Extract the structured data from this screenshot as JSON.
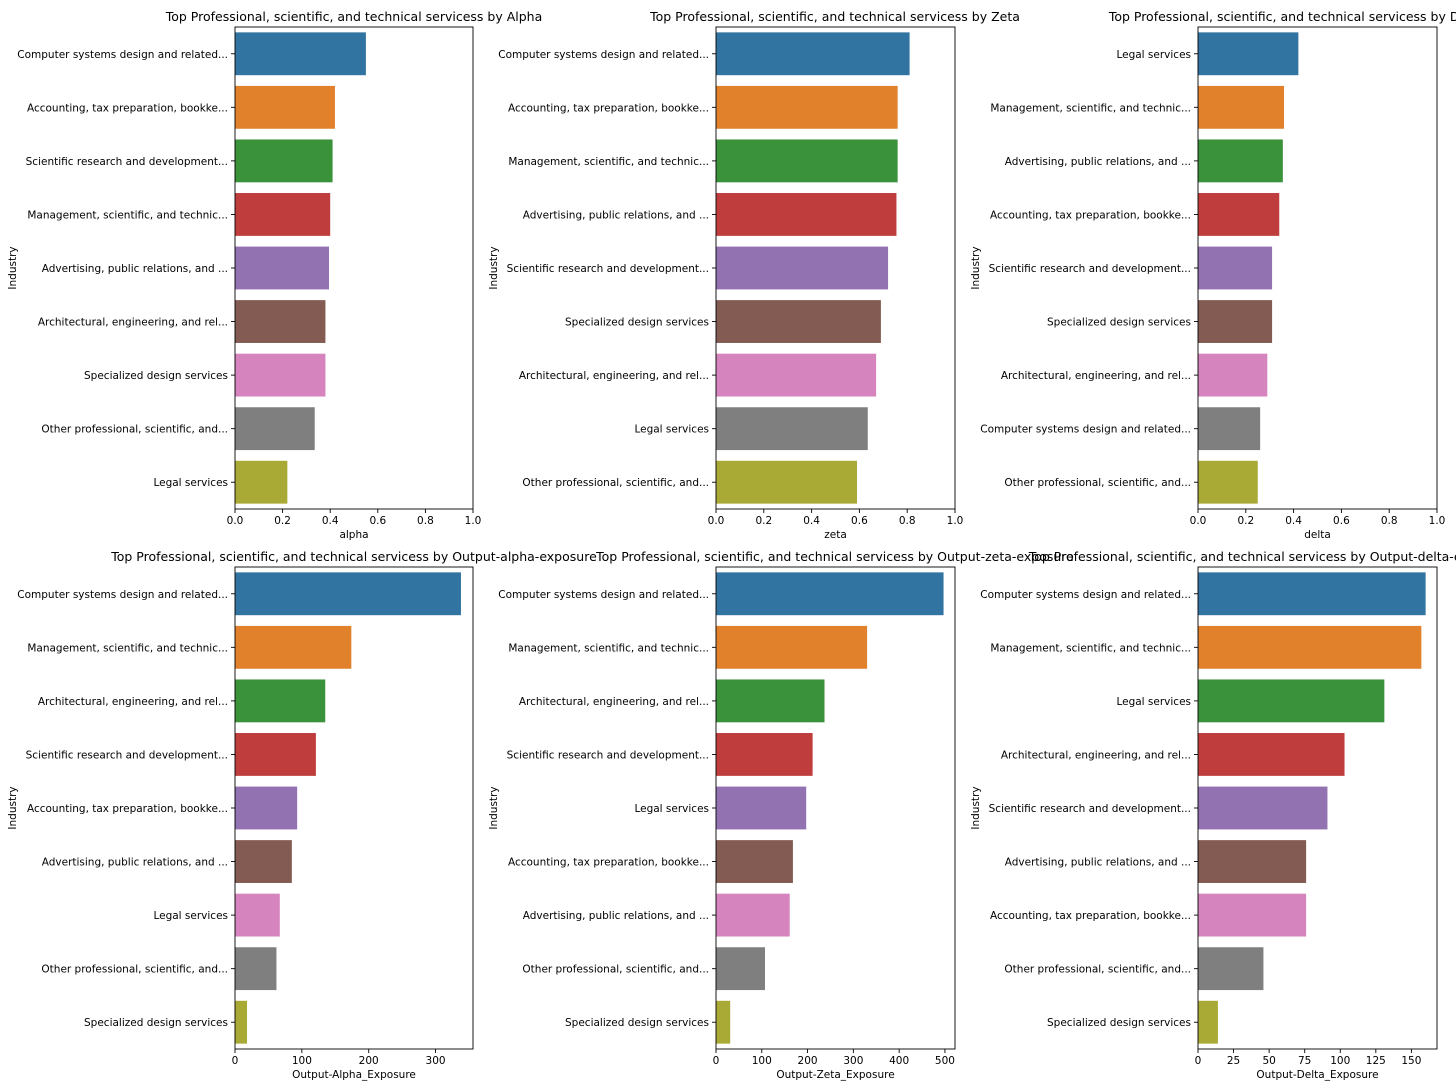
{
  "figure": {
    "background": "#ffffff"
  },
  "chart_data": [
    {
      "type": "bar",
      "orientation": "horizontal",
      "title": "Top Professional, scientific, and technical servicess by Alpha",
      "xlabel": "alpha",
      "ylabel": "Industry",
      "xlim": [
        0,
        1.0
      ],
      "xticks": [
        "0.0",
        "0.2",
        "0.4",
        "0.6",
        "0.8",
        "1.0"
      ],
      "xtick_values": [
        0,
        0.2,
        0.4,
        0.6,
        0.8,
        1.0
      ],
      "categories": [
        "Computer systems design and related...",
        "Accounting, tax preparation, bookke...",
        "Scientific research and development...",
        "Management, scientific, and technic...",
        "Advertising, public relations, and ...",
        "Architectural, engineering, and rel...",
        "Specialized design services",
        "Other professional, scientific, and...",
        "Legal services"
      ],
      "values": [
        0.55,
        0.42,
        0.41,
        0.4,
        0.395,
        0.38,
        0.38,
        0.335,
        0.22
      ]
    },
    {
      "type": "bar",
      "orientation": "horizontal",
      "title": "Top Professional, scientific, and technical servicess by Zeta",
      "xlabel": "zeta",
      "ylabel": "Industry",
      "xlim": [
        0,
        1.0
      ],
      "xticks": [
        "0.0",
        "0.2",
        "0.4",
        "0.6",
        "0.8",
        "1.0"
      ],
      "xtick_values": [
        0,
        0.2,
        0.4,
        0.6,
        0.8,
        1.0
      ],
      "categories": [
        "Computer systems design and related...",
        "Accounting, tax preparation, bookke...",
        "Management, scientific, and technic...",
        "Advertising, public relations, and ...",
        "Scientific research and development...",
        "Specialized design services",
        "Architectural, engineering, and rel...",
        "Legal services",
        "Other professional, scientific, and..."
      ],
      "values": [
        0.81,
        0.76,
        0.76,
        0.755,
        0.72,
        0.69,
        0.67,
        0.635,
        0.59
      ]
    },
    {
      "type": "bar",
      "orientation": "horizontal",
      "title": "Top Professional, scientific, and technical servicess by Delta",
      "xlabel": "delta",
      "ylabel": "Industry",
      "xlim": [
        0,
        1.0
      ],
      "xticks": [
        "0.0",
        "0.2",
        "0.4",
        "0.6",
        "0.8",
        "1.0"
      ],
      "xtick_values": [
        0,
        0.2,
        0.4,
        0.6,
        0.8,
        1.0
      ],
      "categories": [
        "Legal services",
        "Management, scientific, and technic...",
        "Advertising, public relations, and ...",
        "Accounting, tax preparation, bookke...",
        "Scientific research and development...",
        "Specialized design services",
        "Architectural, engineering, and rel...",
        "Computer systems design and related...",
        "Other professional, scientific, and..."
      ],
      "values": [
        0.42,
        0.36,
        0.355,
        0.34,
        0.31,
        0.31,
        0.29,
        0.26,
        0.25
      ]
    },
    {
      "type": "bar",
      "orientation": "horizontal",
      "title": "Top Professional, scientific, and technical servicess by Output-alpha-exposure",
      "xlabel": "Output-Alpha_Exposure",
      "ylabel": "Industry",
      "xlim": [
        0,
        356
      ],
      "xticks": [
        "0",
        "100",
        "200",
        "300"
      ],
      "xtick_values": [
        0,
        100,
        200,
        300
      ],
      "categories": [
        "Computer systems design and related...",
        "Management, scientific, and technic...",
        "Architectural, engineering, and rel...",
        "Scientific research and development...",
        "Accounting, tax preparation, bookke...",
        "Advertising, public relations, and ...",
        "Legal services",
        "Other professional, scientific, and...",
        "Specialized design services"
      ],
      "values": [
        338,
        174,
        135,
        121,
        93,
        85,
        67,
        62,
        18
      ]
    },
    {
      "type": "bar",
      "orientation": "horizontal",
      "title": "Top Professional, scientific, and technical servicess by Output-zeta-exposure",
      "xlabel": "Output-Zeta_Exposure",
      "ylabel": "Industry",
      "xlim": [
        0,
        522
      ],
      "xticks": [
        "0",
        "100",
        "200",
        "300",
        "400",
        "500"
      ],
      "xtick_values": [
        0,
        100,
        200,
        300,
        400,
        500
      ],
      "categories": [
        "Computer systems design and related...",
        "Management, scientific, and technic...",
        "Architectural, engineering, and rel...",
        "Scientific research and development...",
        "Legal services",
        "Accounting, tax preparation, bookke...",
        "Advertising, public relations, and ...",
        "Other professional, scientific, and...",
        "Specialized design services"
      ],
      "values": [
        497,
        330,
        237,
        211,
        197,
        168,
        161,
        107,
        31
      ]
    },
    {
      "type": "bar",
      "orientation": "horizontal",
      "title": "Top Professional, scientific, and technical servicess by Output-delta-exposure",
      "xlabel": "Output-Delta_Exposure",
      "ylabel": "Industry",
      "xlim": [
        0,
        168
      ],
      "xticks": [
        "0",
        "25",
        "50",
        "75",
        "100",
        "125",
        "150"
      ],
      "xtick_values": [
        0,
        25,
        50,
        75,
        100,
        125,
        150
      ],
      "categories": [
        "Computer systems design and related...",
        "Management, scientific, and technic...",
        "Legal services",
        "Architectural, engineering, and rel...",
        "Scientific research and development...",
        "Advertising, public relations, and ...",
        "Accounting, tax preparation, bookke...",
        "Other professional, scientific, and...",
        "Specialized design services"
      ],
      "values": [
        160,
        157,
        131,
        103,
        91,
        76,
        76,
        46,
        14
      ]
    }
  ],
  "palette": [
    "#3274a1",
    "#e1812c",
    "#3a923a",
    "#c03d3e",
    "#9372b2",
    "#845b53",
    "#d684bd",
    "#7f7f7f",
    "#a9aa35"
  ]
}
